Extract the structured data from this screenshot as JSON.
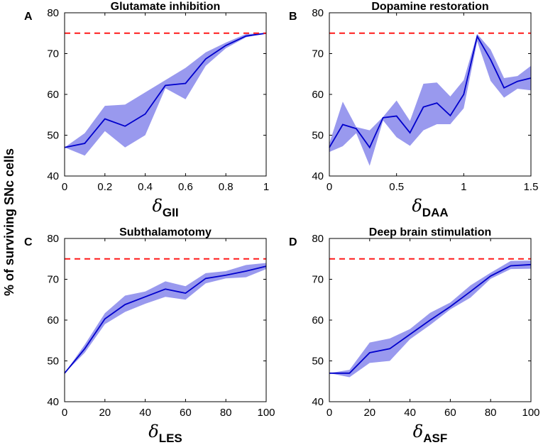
{
  "figure": {
    "ylabel": "% of surviving SNc cells",
    "reference_color": "#ff1a1a",
    "mean_color": "#0000cc",
    "band_color": "#9999ee"
  },
  "chart_data": [
    {
      "type": "line",
      "panel": "A",
      "title": "Glutamate inhibition",
      "xlabel_symbol": "δ",
      "xlabel_subscript": "GII",
      "xlim": [
        0,
        1
      ],
      "ylim": [
        40,
        80
      ],
      "xticks": [
        0,
        0.2,
        0.4,
        0.6,
        0.8,
        1
      ],
      "xtick_labels": [
        "0",
        "0.2",
        "0.4",
        "0.6",
        "0.8",
        "1"
      ],
      "yticks": [
        40,
        50,
        60,
        70,
        80
      ],
      "ytick_labels": [
        "40",
        "50",
        "60",
        "70",
        "80"
      ],
      "reference_line": 75,
      "x": [
        0,
        0.1,
        0.2,
        0.3,
        0.4,
        0.5,
        0.6,
        0.7,
        0.8,
        0.9,
        1.0
      ],
      "mean": [
        47,
        48,
        54,
        52.2,
        55.2,
        62.2,
        62.7,
        68.7,
        72,
        74.3,
        75
      ],
      "upper": [
        47,
        50.5,
        57.2,
        57.5,
        60.5,
        63.5,
        66.5,
        70.3,
        72.7,
        74.8,
        75
      ],
      "lower": [
        47,
        45,
        51,
        47,
        50,
        61.5,
        58.8,
        67,
        71.3,
        74,
        75
      ]
    },
    {
      "type": "line",
      "panel": "B",
      "title": "Dopamine restoration",
      "xlabel_symbol": "δ",
      "xlabel_subscript": "DAA",
      "xlim": [
        0,
        1.5
      ],
      "ylim": [
        40,
        80
      ],
      "xticks": [
        0,
        0.5,
        1,
        1.5
      ],
      "xtick_labels": [
        "0",
        "0.5",
        "1",
        "1.5"
      ],
      "yticks": [
        40,
        50,
        60,
        70,
        80
      ],
      "ytick_labels": [
        "40",
        "50",
        "60",
        "70",
        "80"
      ],
      "reference_line": 75,
      "x": [
        0,
        0.1,
        0.2,
        0.3,
        0.4,
        0.5,
        0.6,
        0.7,
        0.8,
        0.9,
        1.0,
        1.1,
        1.2,
        1.3,
        1.4,
        1.5
      ],
      "mean": [
        47,
        52.6,
        51.6,
        47,
        54.3,
        54.7,
        50.6,
        56.9,
        57.9,
        54.8,
        60,
        74.2,
        68.5,
        61.6,
        63.2,
        64
      ],
      "upper": [
        48,
        58.2,
        52,
        51.2,
        54.5,
        58.5,
        53.5,
        62.6,
        62.9,
        59.5,
        63.5,
        74.8,
        71,
        64,
        64.5,
        67
      ],
      "lower": [
        45.9,
        47.3,
        50.5,
        42.5,
        53.6,
        49.5,
        47.4,
        51.2,
        52.7,
        52.7,
        56.6,
        73,
        63.3,
        59.2,
        61.4,
        61
      ]
    },
    {
      "type": "line",
      "panel": "C",
      "title": "Subthalamotomy",
      "xlabel_symbol": "δ",
      "xlabel_subscript": "LES",
      "xlim": [
        0,
        100
      ],
      "ylim": [
        40,
        80
      ],
      "xticks": [
        0,
        20,
        40,
        60,
        80,
        100
      ],
      "xtick_labels": [
        "0",
        "20",
        "40",
        "60",
        "80",
        "100"
      ],
      "yticks": [
        40,
        50,
        60,
        70,
        80
      ],
      "ytick_labels": [
        "40",
        "50",
        "60",
        "70",
        "80"
      ],
      "reference_line": 75,
      "x": [
        0,
        10,
        20,
        30,
        40,
        50,
        60,
        70,
        80,
        90,
        100
      ],
      "mean": [
        47,
        53,
        60.3,
        63.8,
        65.7,
        67.6,
        66.6,
        70.2,
        71,
        72,
        73.2
      ],
      "upper": [
        47,
        54,
        61.7,
        66,
        67,
        69.5,
        68.3,
        71.5,
        72,
        73.5,
        74
      ],
      "lower": [
        47,
        52,
        59,
        62,
        64,
        65.7,
        65,
        69,
        70.2,
        70.5,
        72.5
      ]
    },
    {
      "type": "line",
      "panel": "D",
      "title": "Deep brain stimulation",
      "xlabel_symbol": "δ",
      "xlabel_subscript": "ASF",
      "xlim": [
        0,
        100
      ],
      "ylim": [
        40,
        80
      ],
      "xticks": [
        0,
        20,
        40,
        60,
        80,
        100
      ],
      "xtick_labels": [
        "0",
        "20",
        "40",
        "60",
        "80",
        "100"
      ],
      "yticks": [
        40,
        50,
        60,
        70,
        80
      ],
      "ytick_labels": [
        "40",
        "50",
        "60",
        "70",
        "80"
      ],
      "reference_line": 75,
      "x": [
        0,
        10,
        20,
        30,
        40,
        50,
        60,
        70,
        80,
        90,
        100
      ],
      "mean": [
        47,
        47,
        52,
        53,
        56.5,
        60,
        63.3,
        67,
        70.8,
        73.3,
        73.6
      ],
      "upper": [
        47,
        47.8,
        54.5,
        55.5,
        57.8,
        61.8,
        64.3,
        68.5,
        71.6,
        74.5,
        74.6
      ],
      "lower": [
        47,
        46,
        49.5,
        50,
        55.3,
        58.8,
        62.6,
        65.5,
        70.1,
        72.5,
        72.6
      ]
    }
  ]
}
